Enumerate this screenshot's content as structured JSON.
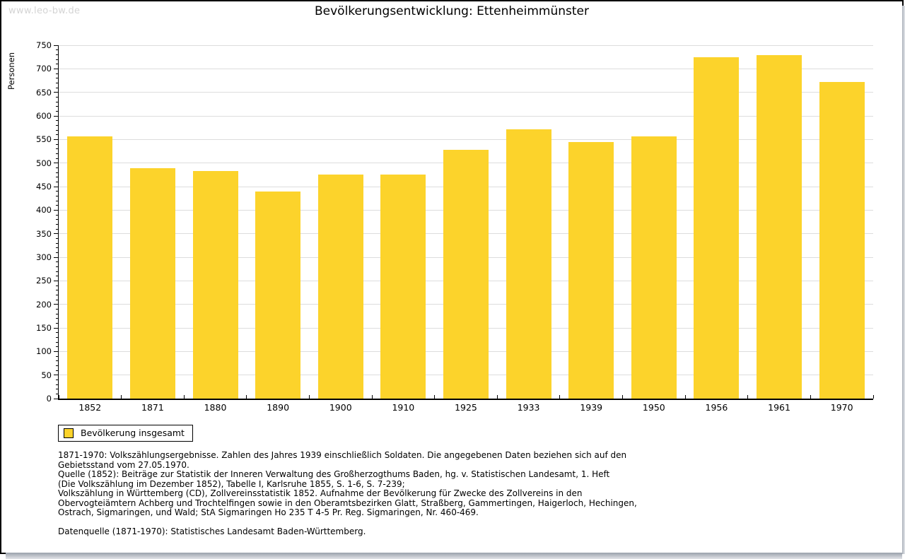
{
  "watermark": "www.leo-bw.de",
  "chart_data": {
    "type": "bar",
    "title": "Bevölkerungsentwicklung: Ettenheimmünster",
    "ylabel": "Personen",
    "xlabel": "",
    "categories": [
      "1852",
      "1871",
      "1880",
      "1890",
      "1900",
      "1910",
      "1925",
      "1933",
      "1939",
      "1950",
      "1956",
      "1961",
      "1970"
    ],
    "values": [
      556,
      489,
      483,
      439,
      476,
      476,
      528,
      572,
      545,
      556,
      725,
      729,
      672
    ],
    "ylim": [
      0,
      750
    ],
    "y_tick_step": 50,
    "y_minor_tick_step": 10,
    "grid": true,
    "bar_color": "#FCD32B",
    "grid_color": "#dddddd",
    "legend_position": "bottom-left",
    "legend": [
      {
        "label": "Bevölkerung insgesamt",
        "color": "#FCD32B"
      }
    ]
  },
  "footnotes": {
    "lines": [
      "1871-1970: Volkszählungsergebnisse. Zahlen des Jahres 1939 einschließlich Soldaten. Die angegebenen Daten beziehen sich auf den",
      "Gebietsstand vom 27.05.1970.",
      "Quelle (1852): Beiträge zur Statistik der Inneren Verwaltung des Großherzogthums Baden, hg. v. Statistischen Landesamt, 1. Heft",
      "(Die Volkszählung im Dezember 1852), Tabelle I, Karlsruhe 1855, S. 1-6, S. 7-239;",
      "Volkszählung in Württemberg (CD), Zollvereinsstatistik 1852. Aufnahme der Bevölkerung für Zwecke des Zollvereins in den",
      "Obervogteiämtern Achberg und Trochtelfingen sowie in den Oberamtsbezirken Glatt, Straßberg, Gammertingen, Haigerloch, Hechingen,",
      "Ostrach, Sigmaringen, und Wald; StA Sigmaringen Ho 235 T 4-5 Pr. Reg. Sigmaringen, Nr. 460-469."
    ],
    "datasource": "Datenquelle (1871-1970): Statistisches Landesamt Baden-Württemberg."
  }
}
